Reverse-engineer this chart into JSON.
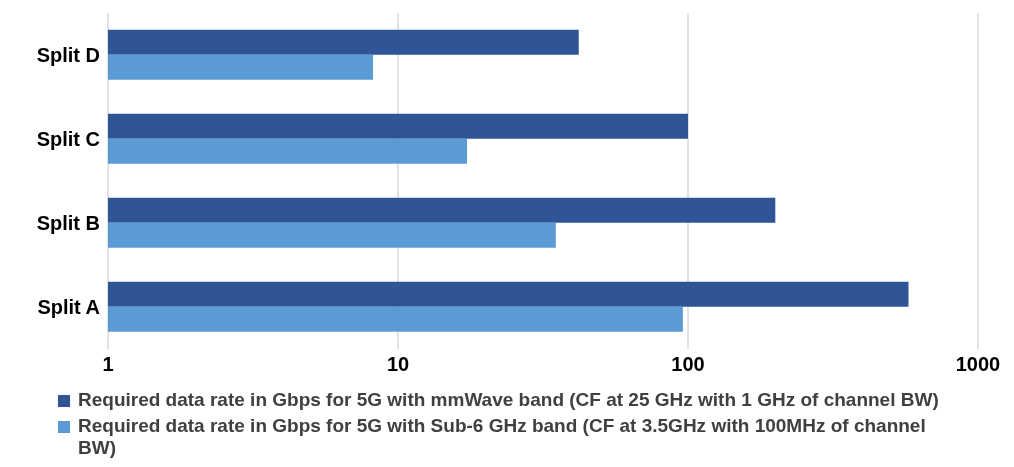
{
  "chart_data": {
    "type": "bar",
    "orientation": "horizontal",
    "categories": [
      "Split D",
      "Split C",
      "Split B",
      "Split A"
    ],
    "series": [
      {
        "name": "Required data rate in Gbps for 5G with mmWave band (CF at 25 GHz with 1 GHz of channel BW)",
        "color": "#2f5597",
        "values": [
          42,
          100,
          200,
          576
        ]
      },
      {
        "name": "Required data rate in Gbps for 5G with Sub-6 GHz band (CF at 3.5GHz with 100MHz of channel BW)",
        "color": "#5b9bd5",
        "values": [
          8.2,
          17.3,
          35,
          96
        ]
      }
    ],
    "log": "x",
    "xlim": [
      1,
      1000
    ],
    "xticks": [
      1,
      10,
      100,
      1000
    ],
    "grid": "x",
    "legend": "bottom"
  }
}
